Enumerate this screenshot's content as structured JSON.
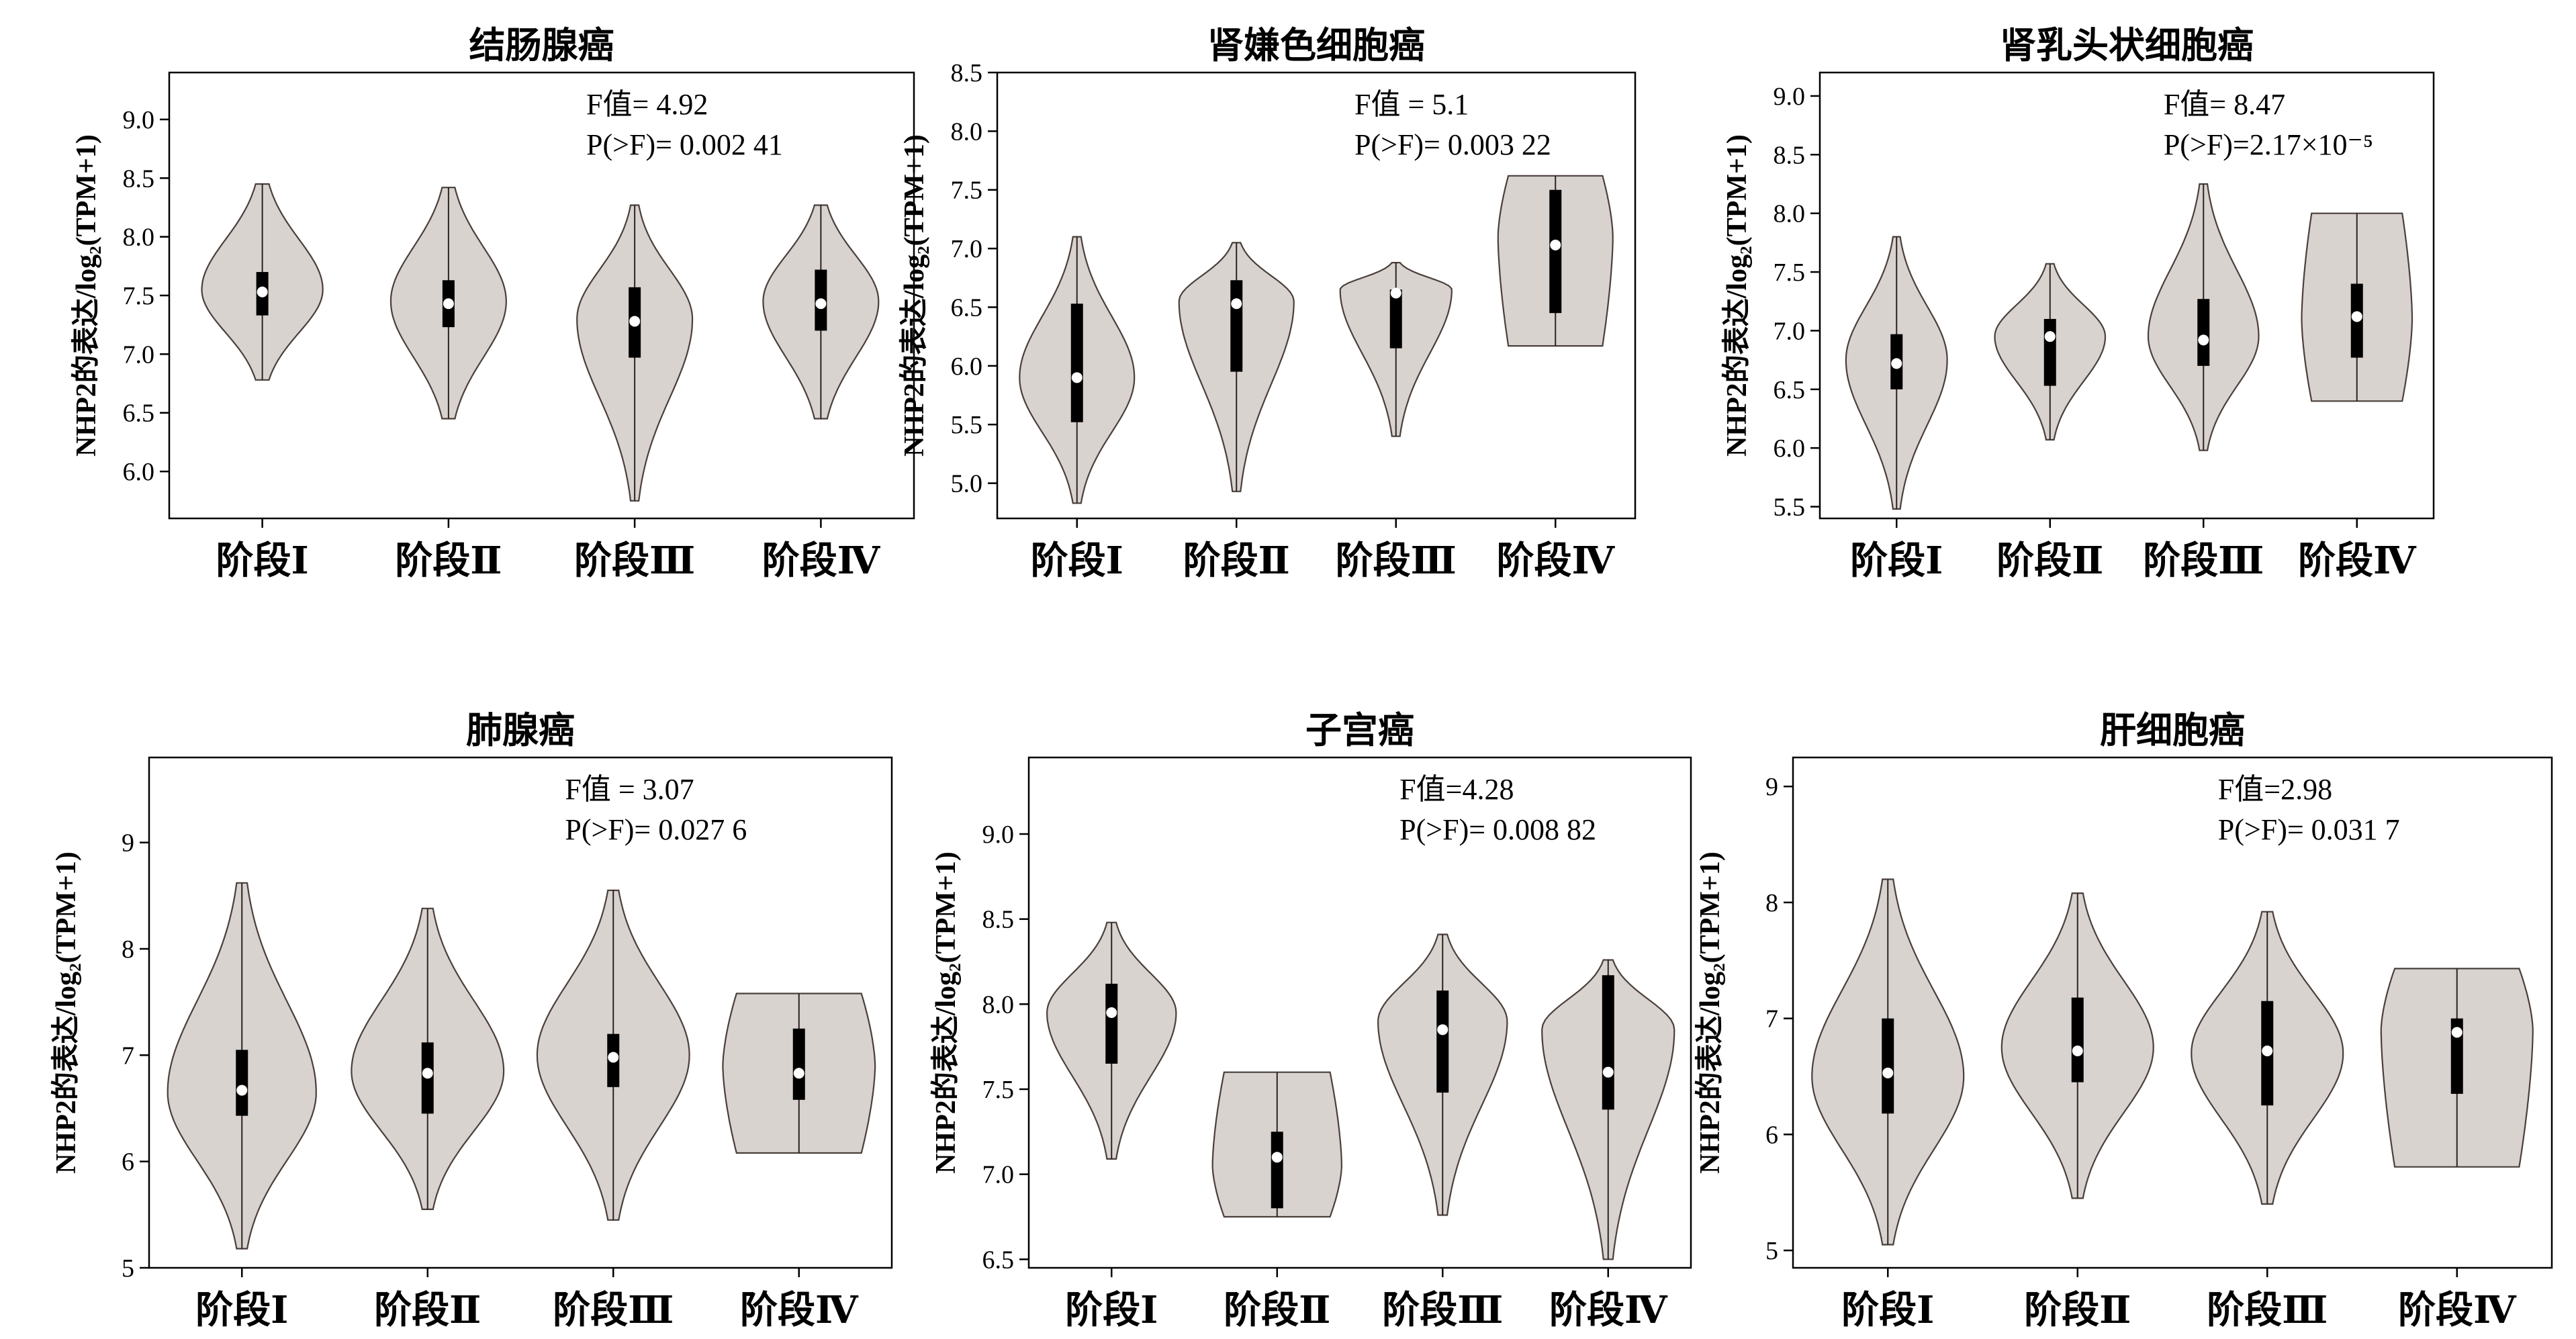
{
  "colors": {
    "violin_fill": "#d9d3d0",
    "violin_stroke": "#4a3f3b",
    "box": "#000000",
    "median": "#ffffff"
  },
  "chart_data": [
    {
      "type": "violin",
      "title": "结肠腺癌",
      "ylabel": "NHP2的表达/log₂(TPM+1)",
      "ylim": [
        5.6,
        9.4
      ],
      "yticks": [
        "6.0",
        "6.5",
        "7.0",
        "7.5",
        "8.0",
        "8.5",
        "9.0"
      ],
      "categories": [
        "阶段Ⅰ",
        "阶段Ⅱ",
        "阶段Ⅲ",
        "阶段Ⅳ"
      ],
      "stat_f": "F值= 4.92",
      "stat_p": "P(>F)= 0.002 41",
      "groups": [
        {
          "min": 6.78,
          "max": 8.45,
          "q1": 7.33,
          "median": 7.53,
          "q3": 7.7,
          "peak": 7.55,
          "width": 0.65,
          "shape": "tight"
        },
        {
          "min": 6.45,
          "max": 8.42,
          "q1": 7.23,
          "median": 7.43,
          "q3": 7.63,
          "peak": 7.45,
          "width": 0.62,
          "shape": "tight"
        },
        {
          "min": 5.75,
          "max": 8.27,
          "q1": 6.97,
          "median": 7.28,
          "q3": 7.57,
          "peak": 7.3,
          "width": 0.62,
          "shape": "normal"
        },
        {
          "min": 6.45,
          "max": 8.27,
          "q1": 7.2,
          "median": 7.43,
          "q3": 7.72,
          "peak": 7.45,
          "width": 0.62,
          "shape": "tight"
        }
      ]
    },
    {
      "type": "violin",
      "title": "肾嫌色细胞癌",
      "ylabel": "NHP2的表达/log₂(TPM+1)",
      "ylim": [
        4.7,
        8.5
      ],
      "yticks": [
        "5.0",
        "5.5",
        "6.0",
        "6.5",
        "7.0",
        "7.5",
        "8.0",
        "8.5"
      ],
      "categories": [
        "阶段Ⅰ",
        "阶段Ⅱ",
        "阶段Ⅲ",
        "阶段Ⅳ"
      ],
      "stat_f": "F值 = 5.1",
      "stat_p": "P(>F)= 0.003 22",
      "groups": [
        {
          "min": 4.83,
          "max": 7.1,
          "q1": 5.52,
          "median": 5.9,
          "q3": 6.53,
          "peak": 5.9,
          "width": 0.72,
          "shape": "normal"
        },
        {
          "min": 4.93,
          "max": 7.05,
          "q1": 5.95,
          "median": 6.53,
          "q3": 6.73,
          "peak": 6.55,
          "width": 0.72,
          "shape": "normal"
        },
        {
          "min": 5.4,
          "max": 6.88,
          "q1": 6.15,
          "median": 6.62,
          "q3": 6.65,
          "peak": 6.65,
          "width": 0.7,
          "shape": "normal"
        },
        {
          "min": 6.17,
          "max": 7.62,
          "q1": 6.45,
          "median": 7.03,
          "q3": 7.5,
          "peak": 7.1,
          "width": 0.72,
          "shape": "flat"
        }
      ]
    },
    {
      "type": "violin",
      "title": "肾乳头状细胞癌",
      "ylabel": "NHP2的表达/log₂(TPM+1)",
      "ylim": [
        5.4,
        9.2
      ],
      "yticks": [
        "5.5",
        "6.0",
        "6.5",
        "7.0",
        "7.5",
        "8.0",
        "8.5",
        "9.0"
      ],
      "categories": [
        "阶段Ⅰ",
        "阶段Ⅱ",
        "阶段Ⅲ",
        "阶段Ⅳ"
      ],
      "stat_f": "F值= 8.47",
      "stat_p": "P(>F)=2.17×10⁻⁵",
      "groups": [
        {
          "min": 5.48,
          "max": 7.8,
          "q1": 6.5,
          "median": 6.72,
          "q3": 6.97,
          "peak": 6.75,
          "width": 0.66,
          "shape": "normal"
        },
        {
          "min": 6.07,
          "max": 7.57,
          "q1": 6.53,
          "median": 6.95,
          "q3": 7.1,
          "peak": 6.95,
          "width": 0.72,
          "shape": "normal"
        },
        {
          "min": 5.98,
          "max": 8.25,
          "q1": 6.7,
          "median": 6.92,
          "q3": 7.27,
          "peak": 6.95,
          "width": 0.72,
          "shape": "normal"
        },
        {
          "min": 6.4,
          "max": 8.0,
          "q1": 6.77,
          "median": 7.12,
          "q3": 7.4,
          "peak": 7.1,
          "width": 0.72,
          "shape": "flat"
        }
      ]
    },
    {
      "type": "violin",
      "title": "肺腺癌",
      "ylabel": "NHP2的表达/log₂(TPM+1)",
      "ylim": [
        5.0,
        9.8
      ],
      "yticks": [
        "5",
        "6",
        "7",
        "8",
        "9"
      ],
      "categories": [
        "阶段Ⅰ",
        "阶段Ⅱ",
        "阶段Ⅲ",
        "阶段Ⅳ"
      ],
      "stat_f": "F值 = 3.07",
      "stat_p": "P(>F)= 0.027 6",
      "groups": [
        {
          "min": 5.18,
          "max": 8.62,
          "q1": 6.43,
          "median": 6.67,
          "q3": 7.05,
          "peak": 6.65,
          "width": 0.8,
          "shape": "normal"
        },
        {
          "min": 5.55,
          "max": 8.38,
          "q1": 6.45,
          "median": 6.83,
          "q3": 7.12,
          "peak": 6.85,
          "width": 0.82,
          "shape": "normal"
        },
        {
          "min": 5.45,
          "max": 8.55,
          "q1": 6.7,
          "median": 6.98,
          "q3": 7.2,
          "peak": 7.0,
          "width": 0.82,
          "shape": "normal"
        },
        {
          "min": 6.08,
          "max": 7.58,
          "q1": 6.58,
          "median": 6.83,
          "q3": 7.25,
          "peak": 6.9,
          "width": 0.82,
          "shape": "flat"
        }
      ]
    },
    {
      "type": "violin",
      "title": "子宫癌",
      "ylabel": "NHP2的表达/log₂(TPM+1)",
      "ylim": [
        6.45,
        9.45
      ],
      "yticks": [
        "6.5",
        "7.0",
        "7.5",
        "8.0",
        "8.5",
        "9.0"
      ],
      "categories": [
        "阶段Ⅰ",
        "阶段Ⅱ",
        "阶段Ⅲ",
        "阶段Ⅳ"
      ],
      "stat_f": "F值=4.28",
      "stat_p": "P(>F)= 0.008 82",
      "groups": [
        {
          "min": 7.09,
          "max": 8.48,
          "q1": 7.65,
          "median": 7.95,
          "q3": 8.12,
          "peak": 7.95,
          "width": 0.78,
          "shape": "normal"
        },
        {
          "min": 6.75,
          "max": 7.6,
          "q1": 6.8,
          "median": 7.1,
          "q3": 7.25,
          "peak": 7.05,
          "width": 0.78,
          "shape": "flat"
        },
        {
          "min": 6.76,
          "max": 8.41,
          "q1": 7.48,
          "median": 7.85,
          "q3": 8.08,
          "peak": 7.9,
          "width": 0.78,
          "shape": "normal"
        },
        {
          "min": 6.5,
          "max": 8.26,
          "q1": 7.38,
          "median": 7.6,
          "q3": 8.17,
          "peak": 7.85,
          "width": 0.8,
          "shape": "normal"
        }
      ]
    },
    {
      "type": "violin",
      "title": "肝细胞癌",
      "ylabel": "NHP2的表达/log₂(TPM+1)",
      "ylim": [
        4.85,
        9.25
      ],
      "yticks": [
        "5",
        "6",
        "7",
        "8",
        "9"
      ],
      "categories": [
        "阶段Ⅰ",
        "阶段Ⅱ",
        "阶段Ⅲ",
        "阶段Ⅳ"
      ],
      "stat_f": "F值=2.98",
      "stat_p": "P(>F)= 0.031 7",
      "groups": [
        {
          "min": 5.05,
          "max": 8.2,
          "q1": 6.18,
          "median": 6.53,
          "q3": 7.0,
          "peak": 6.5,
          "width": 0.8,
          "shape": "normal"
        },
        {
          "min": 5.45,
          "max": 8.08,
          "q1": 6.45,
          "median": 6.72,
          "q3": 7.18,
          "peak": 6.75,
          "width": 0.8,
          "shape": "normal"
        },
        {
          "min": 5.4,
          "max": 7.92,
          "q1": 6.25,
          "median": 6.72,
          "q3": 7.15,
          "peak": 6.7,
          "width": 0.8,
          "shape": "normal"
        },
        {
          "min": 5.72,
          "max": 7.43,
          "q1": 6.35,
          "median": 6.88,
          "q3": 7.0,
          "peak": 6.9,
          "width": 0.8,
          "shape": "flat"
        }
      ]
    }
  ]
}
